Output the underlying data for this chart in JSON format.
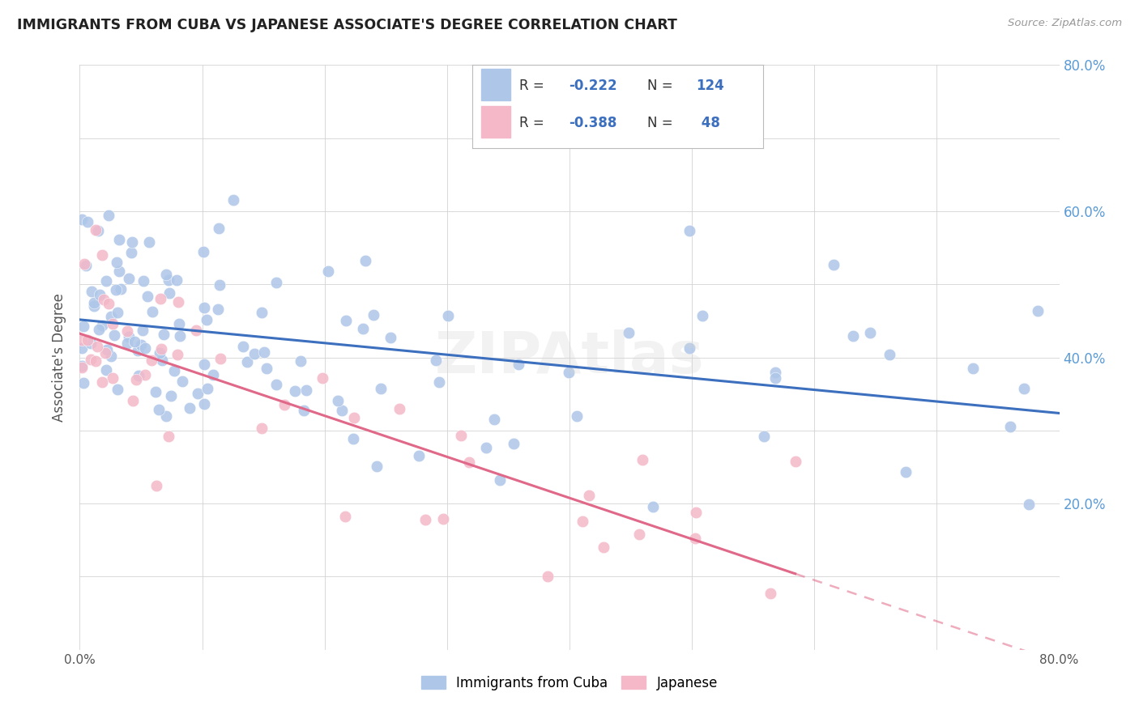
{
  "title": "IMMIGRANTS FROM CUBA VS JAPANESE ASSOCIATE'S DEGREE CORRELATION CHART",
  "source": "Source: ZipAtlas.com",
  "ylabel": "Associate's Degree",
  "xlim": [
    0.0,
    0.8
  ],
  "ylim": [
    0.0,
    0.8
  ],
  "background_color": "#ffffff",
  "grid_color": "#d0d0d0",
  "title_color": "#222222",
  "source_color": "#999999",
  "cuba_scatter_color": "#aec6e8",
  "cuba_line_color": "#3c6fbe",
  "japan_scatter_color": "#f4b8c8",
  "japan_line_color": "#e06888",
  "right_axis_color": "#5b9bd5",
  "cuba_R": "-0.222",
  "cuba_N": "124",
  "japan_R": "-0.388",
  "japan_N": " 48",
  "cuba_label": "Immigrants from Cuba",
  "japan_label": "Japanese",
  "watermark": "ZIPAtlas",
  "legend_R_color": "#3c6fbe",
  "legend_N_color": "#3c6fbe"
}
